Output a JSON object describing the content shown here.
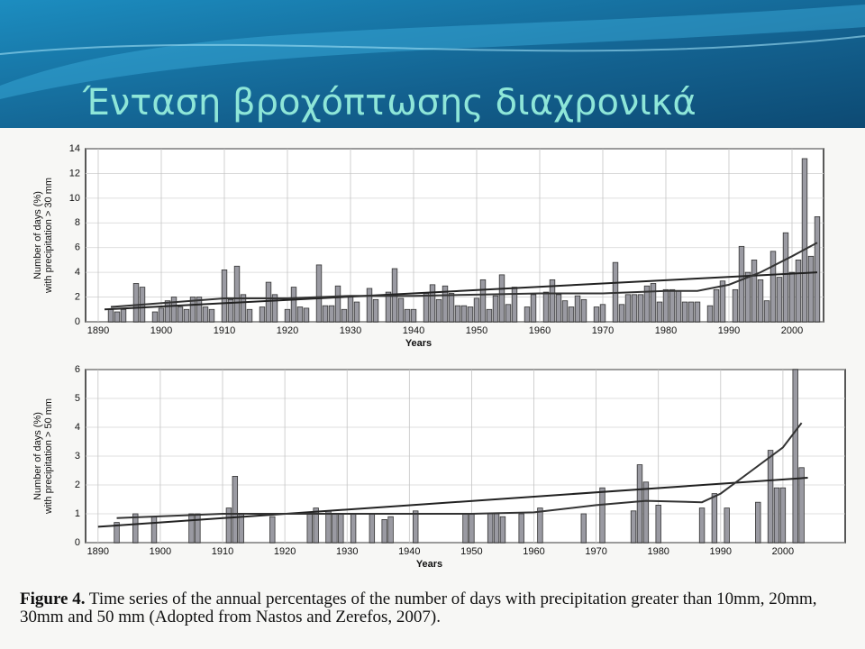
{
  "slide": {
    "title": "Ένταση βροχόπτωσης διαχρονικά"
  },
  "caption": {
    "label": "Figure 4.",
    "text": "Time series of the annual percentages of the number of days with precipitation greater than 10mm, 20mm, 30mm and 50 mm (Adopted from Nastos and Zerefos, 2007)."
  },
  "chart_data": [
    {
      "type": "bar",
      "ylabel": [
        "Number of days (%)",
        "with precipitation > 30 mm"
      ],
      "xlabel": "Years",
      "xlim": [
        1888,
        2005
      ],
      "xticks": [
        1890,
        1900,
        1910,
        1920,
        1930,
        1940,
        1950,
        1960,
        1970,
        1980,
        1990,
        2000
      ],
      "ylim": [
        0,
        14
      ],
      "yticks": [
        0,
        2,
        4,
        6,
        8,
        10,
        12,
        14
      ],
      "grid": true,
      "series": [
        {
          "type": "bar",
          "color": "#9a9aa2",
          "x": [
            1892,
            1893,
            1894,
            1896,
            1897,
            1899,
            1900,
            1901,
            1902,
            1903,
            1904,
            1905,
            1906,
            1907,
            1908,
            1910,
            1911,
            1912,
            1913,
            1914,
            1916,
            1917,
            1918,
            1920,
            1921,
            1922,
            1923,
            1925,
            1926,
            1927,
            1928,
            1929,
            1930,
            1931,
            1933,
            1934,
            1936,
            1937,
            1938,
            1939,
            1940,
            1942,
            1943,
            1944,
            1945,
            1946,
            1947,
            1948,
            1949,
            1950,
            1951,
            1952,
            1953,
            1954,
            1955,
            1956,
            1958,
            1959,
            1961,
            1962,
            1963,
            1964,
            1965,
            1966,
            1967,
            1969,
            1970,
            1972,
            1973,
            1974,
            1975,
            1976,
            1977,
            1978,
            1979,
            1980,
            1981,
            1982,
            1983,
            1984,
            1985,
            1987,
            1988,
            1989,
            1991,
            1992,
            1993,
            1994,
            1995,
            1996,
            1997,
            1998,
            1999,
            2000,
            2001,
            2002,
            2003,
            2004
          ],
          "values": [
            1.0,
            0.8,
            1.0,
            3.1,
            2.8,
            0.8,
            1.1,
            1.7,
            2.0,
            1.2,
            1.0,
            2.0,
            2.0,
            1.2,
            1.0,
            4.2,
            1.8,
            4.5,
            2.2,
            1.0,
            1.2,
            3.2,
            2.2,
            1.0,
            2.8,
            1.2,
            1.1,
            4.6,
            1.3,
            1.3,
            2.9,
            1.0,
            2.0,
            1.6,
            2.7,
            1.8,
            2.4,
            4.3,
            1.9,
            1.0,
            1.0,
            2.3,
            3.0,
            1.8,
            2.9,
            2.3,
            1.3,
            1.3,
            1.2,
            1.9,
            3.4,
            1.0,
            2.1,
            3.8,
            1.4,
            2.8,
            1.2,
            2.2,
            2.4,
            3.4,
            2.2,
            1.7,
            1.2,
            2.1,
            1.8,
            1.2,
            1.4,
            4.8,
            1.4,
            2.2,
            2.2,
            2.2,
            2.9,
            3.1,
            1.6,
            2.6,
            2.6,
            2.5,
            1.6,
            1.6,
            1.6,
            1.3,
            2.6,
            3.3,
            2.6,
            6.1,
            4.0,
            5.0,
            3.4,
            1.7,
            5.7,
            3.6,
            7.2,
            4.0,
            5.0,
            13.2,
            5.3,
            8.5
          ]
        },
        {
          "type": "line",
          "color": "#222222",
          "x": [
            1891,
            2004
          ],
          "values": [
            1.0,
            4.0
          ]
        },
        {
          "type": "line",
          "color": "#333333",
          "x": [
            1892,
            1910,
            1920,
            1930,
            1940,
            1950,
            1960,
            1970,
            1980,
            1985,
            1990,
            1995,
            2000,
            2004
          ],
          "values": [
            1.2,
            1.9,
            1.9,
            2.1,
            2.1,
            2.2,
            2.3,
            2.3,
            2.5,
            2.5,
            3.0,
            4.0,
            5.3,
            6.4
          ]
        }
      ]
    },
    {
      "type": "bar",
      "ylabel": [
        "Number of days (%)",
        "with precipitation > 50 mm"
      ],
      "xlabel": "Years",
      "xlim": [
        1888,
        2010
      ],
      "xticks": [
        1890,
        1900,
        1910,
        1920,
        1930,
        1940,
        1950,
        1960,
        1970,
        1980,
        1990,
        2000
      ],
      "ylim": [
        0,
        6
      ],
      "yticks": [
        0,
        1,
        2,
        3,
        4,
        5,
        6
      ],
      "grid": true,
      "series": [
        {
          "type": "bar",
          "color": "#9a9aa2",
          "x": [
            1893,
            1896,
            1899,
            1905,
            1906,
            1911,
            1912,
            1913,
            1918,
            1924,
            1925,
            1927,
            1928,
            1929,
            1931,
            1934,
            1936,
            1937,
            1941,
            1949,
            1950,
            1953,
            1954,
            1955,
            1958,
            1961,
            1968,
            1971,
            1976,
            1977,
            1978,
            1980,
            1987,
            1989,
            1991,
            1996,
            1998,
            1999,
            2000,
            2002,
            2003
          ],
          "values": [
            0.7,
            1.0,
            0.9,
            1.0,
            1.0,
            1.2,
            2.3,
            1.0,
            0.9,
            1.0,
            1.2,
            1.1,
            1.0,
            1.0,
            1.0,
            1.0,
            0.8,
            0.9,
            1.1,
            1.0,
            1.0,
            1.0,
            1.0,
            0.9,
            1.0,
            1.2,
            1.0,
            1.9,
            1.1,
            2.7,
            2.1,
            1.3,
            1.2,
            1.7,
            1.2,
            1.4,
            3.2,
            1.9,
            1.9,
            6.0,
            2.6
          ]
        },
        {
          "type": "line",
          "color": "#222222",
          "x": [
            1890,
            2004
          ],
          "values": [
            0.55,
            2.25
          ]
        },
        {
          "type": "line",
          "color": "#333333",
          "x": [
            1893,
            1910,
            1930,
            1950,
            1960,
            1970,
            1978,
            1987,
            1990,
            1995,
            2000,
            2003
          ],
          "values": [
            0.85,
            1.0,
            1.0,
            1.0,
            1.05,
            1.3,
            1.45,
            1.4,
            1.7,
            2.5,
            3.3,
            4.15
          ]
        }
      ]
    }
  ]
}
